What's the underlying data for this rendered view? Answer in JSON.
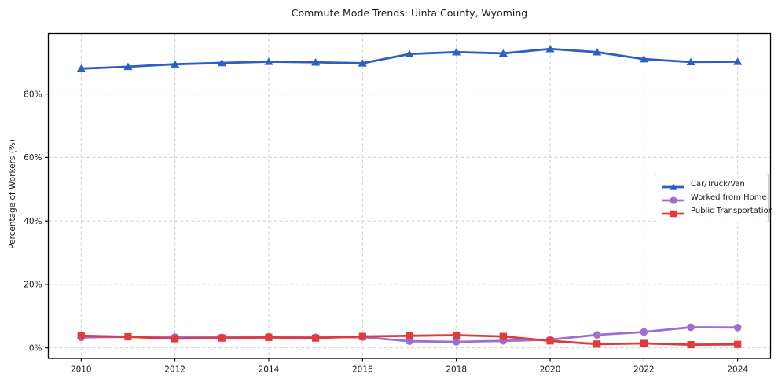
{
  "chart_data": {
    "type": "line",
    "title": "Commute Mode Trends: Uinta County, Wyoming",
    "xlabel": "",
    "ylabel": "Percentage of Workers (%)",
    "x": [
      2010,
      2011,
      2012,
      2013,
      2014,
      2015,
      2016,
      2017,
      2018,
      2019,
      2020,
      2021,
      2022,
      2023,
      2024
    ],
    "series": [
      {
        "name": "Car/Truck/Van",
        "color": "#2b5fc2",
        "marker": "triangle",
        "values": [
          88.0,
          88.6,
          89.4,
          89.8,
          90.2,
          90.0,
          89.7,
          92.6,
          93.2,
          92.8,
          94.2,
          93.2,
          91.0,
          90.1,
          90.2
        ]
      },
      {
        "name": "Worked from Home",
        "color": "#9a6fd4",
        "marker": "circle",
        "values": [
          3.3,
          3.5,
          3.4,
          3.3,
          3.5,
          3.3,
          3.4,
          2.1,
          1.9,
          2.2,
          2.6,
          4.1,
          5.0,
          6.5,
          6.4
        ]
      },
      {
        "name": "Public Transportation",
        "color": "#e03a3a",
        "marker": "square",
        "values": [
          3.8,
          3.5,
          2.9,
          3.1,
          3.3,
          3.1,
          3.6,
          3.8,
          4.0,
          3.6,
          2.2,
          1.2,
          1.4,
          1.0,
          1.1
        ]
      }
    ],
    "x_ticks": [
      2010,
      2012,
      2014,
      2016,
      2018,
      2020,
      2022,
      2024
    ],
    "x_tick_labels": [
      "2010",
      "2012",
      "2014",
      "2016",
      "2018",
      "2020",
      "2022",
      "2024"
    ],
    "y_ticks": [
      0,
      20,
      40,
      60,
      80
    ],
    "y_tick_labels": [
      "0%",
      "20%",
      "40%",
      "60%",
      "80%"
    ],
    "xlim": [
      2009.3,
      2024.7
    ],
    "ylim": [
      -3.3,
      99.1
    ],
    "grid": true,
    "legend_position": "center-right",
    "colors": {
      "grid": "#cfcfcf",
      "spine": "#000000",
      "tick_text": "#1a1a1a",
      "background": "#ffffff"
    }
  }
}
